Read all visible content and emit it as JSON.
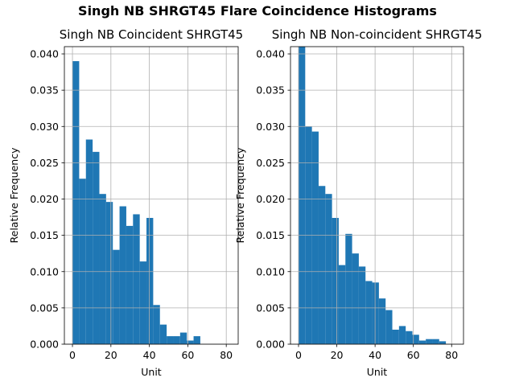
{
  "figure": {
    "title": "Singh NB SHRGT45 Flare Coincidence Histograms"
  },
  "colors": {
    "bar": "#1f77b4",
    "grid": "#b0b0b0",
    "axis": "#000000"
  },
  "chart_data": [
    {
      "type": "bar",
      "title": "Singh NB Coincident SHRGT45",
      "xlabel": "Unit",
      "ylabel": "Relative Frequency",
      "xlim": [
        -4.2,
        86.2
      ],
      "ylim": [
        0,
        0.041
      ],
      "xticks": [
        "0",
        "20",
        "40",
        "60",
        "80"
      ],
      "yticks": [
        "0.000",
        "0.005",
        "0.010",
        "0.015",
        "0.020",
        "0.025",
        "0.030",
        "0.035",
        "0.040"
      ],
      "grid": true,
      "bin_width": 3.5,
      "bin_starts": [
        0,
        3.5,
        7,
        10.5,
        14,
        17.5,
        21,
        24.5,
        28,
        31.5,
        35,
        38.5,
        42,
        45.5,
        49,
        52.5,
        56,
        59.5,
        63,
        66.5,
        70,
        73.5,
        77,
        80.5
      ],
      "values": [
        0.039,
        0.0228,
        0.0282,
        0.0265,
        0.0207,
        0.0196,
        0.013,
        0.019,
        0.0163,
        0.0179,
        0.0114,
        0.0174,
        0.0054,
        0.0027,
        0.0011,
        0.0011,
        0.0016,
        0.0005,
        0.0011,
        0,
        0,
        0,
        0,
        0
      ]
    },
    {
      "type": "bar",
      "title": "Singh NB Non-coincident SHRGT45",
      "xlabel": "Unit",
      "ylabel": "Relative Frequency",
      "xlim": [
        -4.2,
        86.2
      ],
      "ylim": [
        0,
        0.041
      ],
      "xticks": [
        "0",
        "20",
        "40",
        "60",
        "80"
      ],
      "yticks": [
        "0.000",
        "0.005",
        "0.010",
        "0.015",
        "0.020",
        "0.025",
        "0.030",
        "0.035",
        "0.040"
      ],
      "grid": true,
      "bin_width": 3.5,
      "bin_starts": [
        0,
        3.5,
        7,
        10.5,
        14,
        17.5,
        21,
        24.5,
        28,
        31.5,
        35,
        38.5,
        42,
        45.5,
        49,
        52.5,
        56,
        59.5,
        63,
        66.5,
        70,
        73.5,
        77,
        80.5
      ],
      "values": [
        0.0412,
        0.03,
        0.0293,
        0.0218,
        0.0207,
        0.0174,
        0.0109,
        0.0152,
        0.0125,
        0.0107,
        0.0087,
        0.0085,
        0.0063,
        0.0047,
        0.002,
        0.0025,
        0.0018,
        0.0013,
        0.0005,
        0.0007,
        0.0007,
        0.0004,
        0,
        0
      ]
    }
  ]
}
